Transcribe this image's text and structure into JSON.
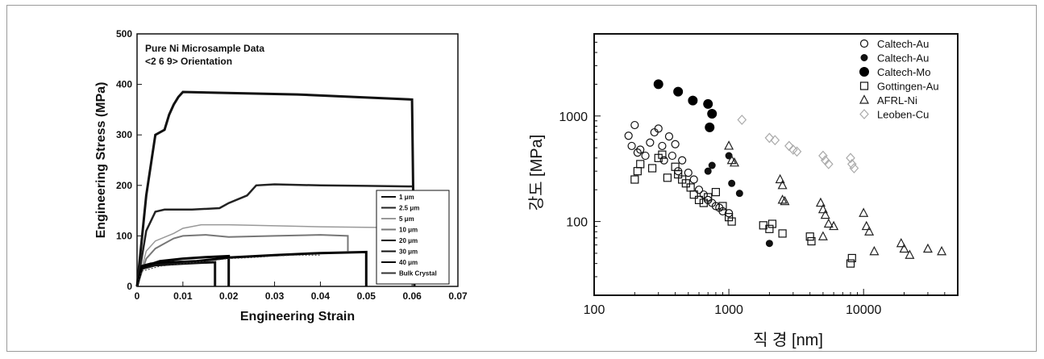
{
  "chart_data": [
    {
      "type": "line",
      "title": "Pure Ni Microsample Data",
      "subtitle": "<2 6 9> Orientation",
      "xlabel": "Engineering Strain",
      "ylabel": "Engineering Stress (MPa)",
      "xlim": [
        0,
        0.07
      ],
      "ylim": [
        0,
        500
      ],
      "x_ticks": [
        "0",
        "0.01",
        "0.02",
        "0.03",
        "0.04",
        "0.05",
        "0.06",
        "0.07"
      ],
      "y_ticks": [
        "0",
        "100",
        "200",
        "300",
        "400",
        "500"
      ],
      "legend_position": "bottom-right",
      "series": [
        {
          "name": "1 μm",
          "color": "#111111",
          "points": [
            [
              0,
              0
            ],
            [
              0.002,
              180
            ],
            [
              0.004,
              300
            ],
            [
              0.006,
              310
            ],
            [
              0.007,
              340
            ],
            [
              0.008,
              360
            ],
            [
              0.009,
              375
            ],
            [
              0.01,
              385
            ],
            [
              0.035,
              380
            ],
            [
              0.06,
              370
            ],
            [
              0.0605,
              0
            ]
          ]
        },
        {
          "name": "2.5 μm",
          "color": "#222222",
          "points": [
            [
              0,
              0
            ],
            [
              0.002,
              110
            ],
            [
              0.004,
              148
            ],
            [
              0.006,
              152
            ],
            [
              0.012,
              152
            ],
            [
              0.018,
              155
            ],
            [
              0.02,
              165
            ],
            [
              0.024,
              180
            ],
            [
              0.026,
              200
            ],
            [
              0.03,
              202
            ],
            [
              0.04,
              200
            ],
            [
              0.05,
              199
            ],
            [
              0.06,
              198
            ]
          ]
        },
        {
          "name": "5 μm",
          "color": "#999999",
          "points": [
            [
              0,
              0
            ],
            [
              0.002,
              70
            ],
            [
              0.004,
              90
            ],
            [
              0.008,
              105
            ],
            [
              0.01,
              115
            ],
            [
              0.014,
              122
            ],
            [
              0.02,
              122
            ],
            [
              0.04,
              118
            ],
            [
              0.06,
              116
            ]
          ]
        },
        {
          "name": "10 μm",
          "color": "#777777",
          "points": [
            [
              0,
              0
            ],
            [
              0.002,
              55
            ],
            [
              0.004,
              75
            ],
            [
              0.006,
              85
            ],
            [
              0.008,
              95
            ],
            [
              0.01,
              100
            ],
            [
              0.015,
              102
            ],
            [
              0.02,
              98
            ],
            [
              0.03,
              100
            ],
            [
              0.04,
              102
            ],
            [
              0.046,
              100
            ],
            [
              0.046,
              70
            ]
          ]
        },
        {
          "name": "20 μm",
          "color": "#000000",
          "points": [
            [
              0,
              0
            ],
            [
              0.001,
              40
            ],
            [
              0.003,
              45
            ],
            [
              0.008,
              48
            ],
            [
              0.013,
              50
            ],
            [
              0.018,
              55
            ],
            [
              0.02,
              57
            ],
            [
              0.03,
              62
            ],
            [
              0.04,
              66
            ],
            [
              0.05,
              68
            ],
            [
              0.05,
              0
            ]
          ]
        },
        {
          "name": "30 μm",
          "color": "#111111",
          "points": [
            [
              0,
              0
            ],
            [
              0.001,
              35
            ],
            [
              0.004,
              42
            ],
            [
              0.01,
              45
            ],
            [
              0.014,
              47
            ],
            [
              0.017,
              48
            ],
            [
              0.017,
              0
            ]
          ]
        },
        {
          "name": "40 μm",
          "color": "#000000",
          "points": [
            [
              0,
              0
            ],
            [
              0.001,
              38
            ],
            [
              0.005,
              50
            ],
            [
              0.01,
              55
            ],
            [
              0.015,
              58
            ],
            [
              0.02,
              60
            ],
            [
              0.02,
              0
            ]
          ]
        },
        {
          "name": "Bulk Crystal",
          "color": "#333333",
          "points": [
            [
              0,
              0
            ],
            [
              0.001,
              30
            ],
            [
              0.005,
              40
            ],
            [
              0.01,
              45
            ],
            [
              0.015,
              50
            ],
            [
              0.02,
              55
            ],
            [
              0.025,
              57
            ],
            [
              0.03,
              60
            ],
            [
              0.035,
              62
            ],
            [
              0.04,
              62
            ]
          ]
        }
      ]
    },
    {
      "type": "scatter",
      "title": "",
      "xlabel": "직 경 [nm]",
      "ylabel": "강도 [MPa]",
      "x_scale": "log",
      "y_scale": "log",
      "xlim": [
        100,
        50000
      ],
      "ylim": [
        20,
        6000
      ],
      "x_ticks": [
        "100",
        "1000",
        "10000"
      ],
      "y_ticks": [
        "100",
        "1000"
      ],
      "legend_position": "top-right",
      "series": [
        {
          "name": "Caltech-Au",
          "marker": "circle-open",
          "color": "#111111",
          "points": [
            [
              180,
              650
            ],
            [
              190,
              520
            ],
            [
              200,
              820
            ],
            [
              210,
              450
            ],
            [
              220,
              480
            ],
            [
              240,
              420
            ],
            [
              260,
              560
            ],
            [
              280,
              700
            ],
            [
              300,
              760
            ],
            [
              320,
              520
            ],
            [
              330,
              380
            ],
            [
              360,
              640
            ],
            [
              380,
              420
            ],
            [
              400,
              540
            ],
            [
              420,
              300
            ],
            [
              450,
              380
            ],
            [
              500,
              290
            ],
            [
              550,
              250
            ],
            [
              600,
              200
            ],
            [
              650,
              180
            ],
            [
              700,
              160
            ],
            [
              750,
              150
            ],
            [
              800,
              140
            ],
            [
              850,
              135
            ],
            [
              900,
              125
            ],
            [
              1000,
              120
            ]
          ]
        },
        {
          "name": "Caltech-Au",
          "marker": "circle-filled-small",
          "color": "#111111",
          "points": [
            [
              700,
              300
            ],
            [
              750,
              340
            ],
            [
              1000,
              420
            ],
            [
              1050,
              230
            ],
            [
              1200,
              185
            ],
            [
              2000,
              62
            ]
          ]
        },
        {
          "name": "Caltech-Mo",
          "marker": "circle-filled",
          "color": "#000000",
          "points": [
            [
              300,
              2000
            ],
            [
              420,
              1700
            ],
            [
              540,
              1400
            ],
            [
              700,
              1300
            ],
            [
              720,
              780
            ],
            [
              750,
              1050
            ]
          ]
        },
        {
          "name": "Gottingen-Au",
          "marker": "square-open",
          "color": "#111111",
          "points": [
            [
              200,
              250
            ],
            [
              210,
              300
            ],
            [
              220,
              350
            ],
            [
              270,
              320
            ],
            [
              300,
              400
            ],
            [
              320,
              430
            ],
            [
              350,
              260
            ],
            [
              400,
              330
            ],
            [
              420,
              280
            ],
            [
              450,
              250
            ],
            [
              480,
              230
            ],
            [
              520,
              210
            ],
            [
              550,
              180
            ],
            [
              600,
              160
            ],
            [
              650,
              150
            ],
            [
              700,
              170
            ],
            [
              800,
              190
            ],
            [
              900,
              140
            ],
            [
              1000,
              110
            ],
            [
              1050,
              100
            ],
            [
              1800,
              92
            ],
            [
              2000,
              85
            ],
            [
              2100,
              95
            ],
            [
              2500,
              77
            ],
            [
              4000,
              72
            ],
            [
              4100,
              65
            ],
            [
              8000,
              40
            ],
            [
              8200,
              45
            ]
          ]
        },
        {
          "name": "AFRL-Ni",
          "marker": "triangle-open",
          "color": "#222222",
          "points": [
            [
              1000,
              520
            ],
            [
              1050,
              380
            ],
            [
              1100,
              360
            ],
            [
              2400,
              250
            ],
            [
              2500,
              160
            ],
            [
              2600,
              155
            ],
            [
              4800,
              150
            ],
            [
              5000,
              130
            ],
            [
              5200,
              115
            ],
            [
              5500,
              95
            ],
            [
              6000,
              90
            ],
            [
              10000,
              120
            ],
            [
              10500,
              90
            ],
            [
              11000,
              80
            ],
            [
              12000,
              52
            ],
            [
              19000,
              62
            ],
            [
              20000,
              55
            ],
            [
              22000,
              48
            ],
            [
              30000,
              55
            ],
            [
              38000,
              52
            ],
            [
              5000,
              72
            ],
            [
              2500,
              220
            ]
          ]
        },
        {
          "name": "Leoben-Cu",
          "marker": "diamond-open",
          "color": "#aaaaaa",
          "points": [
            [
              1250,
              920
            ],
            [
              2000,
              620
            ],
            [
              2200,
              590
            ],
            [
              2800,
              520
            ],
            [
              3000,
              480
            ],
            [
              3200,
              460
            ],
            [
              5000,
              420
            ],
            [
              5200,
              380
            ],
            [
              5500,
              350
            ],
            [
              8000,
              400
            ],
            [
              8200,
              350
            ],
            [
              8500,
              320
            ]
          ]
        }
      ]
    }
  ]
}
